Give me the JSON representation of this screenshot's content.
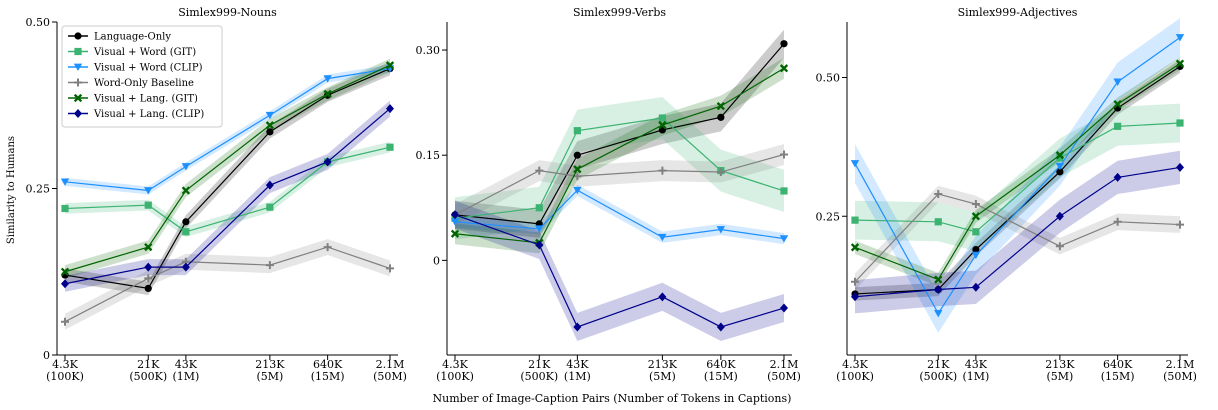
{
  "figure": {
    "shared_xlabel": "Number of Image-Caption Pairs (Number of Tokens in Captions)",
    "shared_ylabel": "Similarity to Humans"
  },
  "legend": {
    "placement": "upper-left of first panel",
    "entries": [
      {
        "name": "Language-Only",
        "color": "#000000",
        "marker": "circle"
      },
      {
        "name": "Visual + Word (GIT)",
        "color": "#3cb371",
        "marker": "square"
      },
      {
        "name": "Visual + Word (CLIP)",
        "color": "#1e90ff",
        "marker": "triangle-down"
      },
      {
        "name": "Word-Only Baseline",
        "color": "#808080",
        "marker": "plus"
      },
      {
        "name": "Visual + Lang. (GIT)",
        "color": "#006400",
        "marker": "x"
      },
      {
        "name": "Visual + Lang. (CLIP)",
        "color": "#00008b",
        "marker": "diamond"
      }
    ]
  },
  "chart_data": [
    {
      "type": "line",
      "title": "Simlex999-Nouns",
      "xlabel": "",
      "ylabel": "Similarity to Humans",
      "x_scale": "log",
      "x": [
        4300,
        21000,
        43000,
        213000,
        640000,
        2100000
      ],
      "x_tick_labels": [
        [
          "4.3K",
          "(100K)"
        ],
        [
          "21K",
          "(500K)"
        ],
        [
          "43K",
          "(1M)"
        ],
        [
          "213K",
          "(5M)"
        ],
        [
          "640K",
          "(15M)"
        ],
        [
          "2.1M",
          "(50M)"
        ]
      ],
      "ylim": [
        0,
        0.5
      ],
      "y_ticks": [
        0,
        0.25,
        0.5
      ],
      "y_tick_labels": [
        "0",
        "0.25",
        "0.50"
      ],
      "grid": false,
      "series": [
        {
          "name": "Language-Only",
          "color": "#000000",
          "marker": "circle",
          "values": [
            0.12,
            0.1,
            0.2,
            0.335,
            0.39,
            0.43
          ],
          "band": 0.01
        },
        {
          "name": "Visual + Word (GIT)",
          "color": "#3cb371",
          "marker": "square",
          "values": [
            0.22,
            0.225,
            0.185,
            0.222,
            0.29,
            0.312
          ],
          "band": 0.008
        },
        {
          "name": "Visual + Word (CLIP)",
          "color": "#1e90ff",
          "marker": "triangle-down",
          "values": [
            0.26,
            0.247,
            0.283,
            0.36,
            0.415,
            0.43
          ],
          "band": 0.006
        },
        {
          "name": "Word-Only Baseline",
          "color": "#808080",
          "marker": "plus",
          "values": [
            0.05,
            0.115,
            0.14,
            0.135,
            0.162,
            0.13
          ],
          "band": 0.012
        },
        {
          "name": "Visual + Lang. (GIT)",
          "color": "#006400",
          "marker": "x",
          "values": [
            0.125,
            0.162,
            0.247,
            0.345,
            0.392,
            0.435
          ],
          "band": 0.01
        },
        {
          "name": "Visual + Lang. (CLIP)",
          "color": "#00008b",
          "marker": "diamond",
          "values": [
            0.107,
            0.132,
            0.132,
            0.255,
            0.29,
            0.37
          ],
          "band": 0.012
        }
      ]
    },
    {
      "type": "line",
      "title": "Simlex999-Verbs",
      "xlabel": "",
      "ylabel": "",
      "x_scale": "log",
      "x": [
        4300,
        21000,
        43000,
        213000,
        640000,
        2100000
      ],
      "x_tick_labels": [
        [
          "4.3K",
          "(100K)"
        ],
        [
          "21K",
          "(500K)"
        ],
        [
          "43K",
          "(1M)"
        ],
        [
          "213K",
          "(5M)"
        ],
        [
          "640K",
          "(15M)"
        ],
        [
          "2.1M",
          "(50M)"
        ]
      ],
      "ylim": [
        -0.135,
        0.34
      ],
      "y_ticks": [
        0,
        0.15,
        0.3
      ],
      "y_tick_labels": [
        "0",
        "0.15",
        "0.30"
      ],
      "grid": false,
      "series": [
        {
          "name": "Language-Only",
          "color": "#000000",
          "marker": "circle",
          "values": [
            0.065,
            0.052,
            0.15,
            0.186,
            0.204,
            0.309
          ],
          "band": 0.02
        },
        {
          "name": "Visual + Word (GIT)",
          "color": "#3cb371",
          "marker": "square",
          "values": [
            0.06,
            0.075,
            0.185,
            0.203,
            0.128,
            0.099
          ],
          "band": 0.03
        },
        {
          "name": "Visual + Word (CLIP)",
          "color": "#1e90ff",
          "marker": "triangle-down",
          "values": [
            0.055,
            0.045,
            0.1,
            0.033,
            0.044,
            0.031
          ],
          "band": 0.008
        },
        {
          "name": "Word-Only Baseline",
          "color": "#808080",
          "marker": "plus",
          "values": [
            0.065,
            0.128,
            0.12,
            0.128,
            0.126,
            0.151
          ],
          "band": 0.015
        },
        {
          "name": "Visual + Lang. (GIT)",
          "color": "#006400",
          "marker": "x",
          "values": [
            0.038,
            0.025,
            0.13,
            0.193,
            0.22,
            0.274
          ],
          "band": 0.015
        },
        {
          "name": "Visual + Lang. (CLIP)",
          "color": "#00008b",
          "marker": "diamond",
          "values": [
            0.065,
            0.022,
            -0.095,
            -0.052,
            -0.095,
            -0.068
          ],
          "band": 0.02
        }
      ]
    },
    {
      "type": "line",
      "title": "Simlex999-Adjectives",
      "xlabel": "",
      "ylabel": "",
      "x_scale": "log",
      "x": [
        4300,
        21000,
        43000,
        213000,
        640000,
        2100000
      ],
      "x_tick_labels": [
        [
          "4.3K",
          "(100K)"
        ],
        [
          "21K",
          "(500K)"
        ],
        [
          "43K",
          "(1M)"
        ],
        [
          "213K",
          "(5M)"
        ],
        [
          "640K",
          "(15M)"
        ],
        [
          "2.1M",
          "(50M)"
        ]
      ],
      "ylim": [
        0.0,
        0.6
      ],
      "y_ticks": [
        0.25,
        0.5
      ],
      "y_tick_labels": [
        "0.25",
        "0.50"
      ],
      "grid": false,
      "series": [
        {
          "name": "Language-Only",
          "color": "#000000",
          "marker": "circle",
          "values": [
            0.11,
            0.118,
            0.19,
            0.33,
            0.445,
            0.52
          ],
          "band": 0.012
        },
        {
          "name": "Visual + Word (GIT)",
          "color": "#3cb371",
          "marker": "square",
          "values": [
            0.243,
            0.24,
            0.222,
            0.355,
            0.412,
            0.418
          ],
          "band": 0.035
        },
        {
          "name": "Visual + Word (CLIP)",
          "color": "#1e90ff",
          "marker": "triangle-down",
          "values": [
            0.345,
            0.075,
            0.18,
            0.34,
            0.492,
            0.572
          ],
          "band": 0.035
        },
        {
          "name": "Word-Only Baseline",
          "color": "#808080",
          "marker": "plus",
          "values": [
            0.132,
            0.29,
            0.272,
            0.196,
            0.24,
            0.235
          ],
          "band": 0.015
        },
        {
          "name": "Visual + Lang. (GIT)",
          "color": "#006400",
          "marker": "x",
          "values": [
            0.194,
            0.136,
            0.25,
            0.36,
            0.452,
            0.525
          ],
          "band": 0.012
        },
        {
          "name": "Visual + Lang. (CLIP)",
          "color": "#00008b",
          "marker": "diamond",
          "values": [
            0.105,
            0.118,
            0.122,
            0.25,
            0.32,
            0.338
          ],
          "band": 0.03
        }
      ]
    }
  ]
}
